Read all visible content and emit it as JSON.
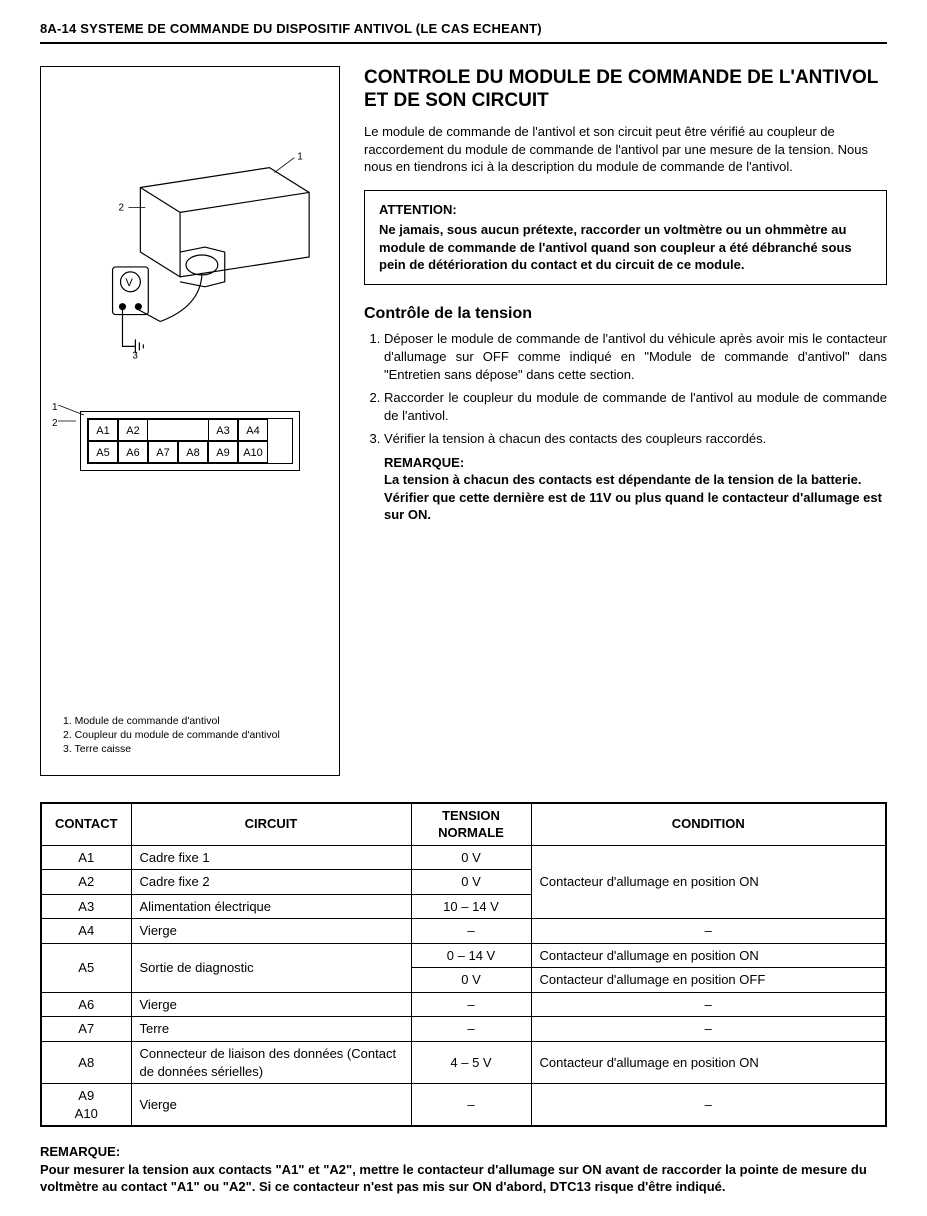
{
  "header": {
    "text": "8A-14   SYSTEME DE COMMANDE DU DISPOSITIF ANTIVOL (LE CAS ECHEANT)"
  },
  "figure": {
    "pins_row1": [
      "A1",
      "A2",
      "",
      "",
      "A3",
      "A4"
    ],
    "pins_row2": [
      "A5",
      "A6",
      "A7",
      "A8",
      "A9",
      "A10"
    ],
    "legend": [
      "1. Module de commande d'antivol",
      "2. Coupleur du module de commande d'antivol",
      "3. Terre caisse"
    ]
  },
  "title": "CONTROLE DU MODULE DE COMMANDE DE L'ANTIVOL ET DE SON CIRCUIT",
  "intro": "Le module de commande de l'antivol et son circuit peut être vérifié au coupleur de raccordement du module de commande de l'antivol par une mesure de la tension. Nous nous en tiendrons ici à la description du module de commande de l'antivol.",
  "attention": {
    "label": "ATTENTION:",
    "body": "Ne jamais, sous aucun prétexte, raccorder un voltmètre ou un ohmmètre au module de commande de l'antivol quand son coupleur a été débranché sous pein de détérioration du contact et du circuit de ce module."
  },
  "subheading": "Contrôle de la tension",
  "steps": [
    "Déposer le module de commande de l'antivol du véhicule après avoir mis le contacteur d'allumage sur OFF comme indiqué en \"Module de commande d'antivol\" dans \"Entretien sans dépose\" dans cette section.",
    "Raccorder le coupleur du module de commande de l'antivol au module de commande de l'antivol.",
    "Vérifier la tension à chacun des contacts des coupleurs raccordés."
  ],
  "step_remark": {
    "label": "REMARQUE:",
    "body": "La tension à chacun des contacts est dépendante de la tension de la batterie. Vérifier que cette dernière est de 11V ou plus quand le contacteur d'allumage est sur ON."
  },
  "table": {
    "headers": {
      "contact": "CONTACT",
      "circuit": "CIRCUIT",
      "tension": "TENSION NORMALE",
      "condition": "CONDITION"
    },
    "rows": [
      {
        "contact": "A1",
        "circuit": "Cadre fixe 1",
        "tension": "0 V",
        "condition": "Contacteur d'allumage en position ON",
        "cond_rowspan": 3
      },
      {
        "contact": "A2",
        "circuit": "Cadre fixe 2",
        "tension": "0 V"
      },
      {
        "contact": "A3",
        "circuit": "Alimentation électrique",
        "tension": "10 – 14 V"
      },
      {
        "contact": "A4",
        "circuit": "Vierge",
        "tension": "–",
        "condition": "–",
        "cond_center": true
      },
      {
        "contact": "A5",
        "contact_rowspan": 2,
        "circuit": "Sortie de diagnostic",
        "circuit_rowspan": 2,
        "tension": "0 – 14 V",
        "condition": "Contacteur d'allumage en position ON"
      },
      {
        "tension": "0 V",
        "condition": "Contacteur d'allumage en position OFF"
      },
      {
        "contact": "A6",
        "circuit": "Vierge",
        "tension": "–",
        "condition": "–",
        "cond_center": true
      },
      {
        "contact": "A7",
        "circuit": "Terre",
        "tension": "–",
        "condition": "–",
        "cond_center": true
      },
      {
        "contact": "A8",
        "circuit": "Connecteur de liaison des données (Contact de données sérielles)",
        "tension": "4 – 5 V",
        "condition": "Contacteur d'allumage en position ON"
      },
      {
        "contact": "A9\nA10",
        "circuit": "Vierge",
        "tension": "–",
        "condition": "–",
        "cond_center": true
      }
    ]
  },
  "footer_remark": {
    "label": "REMARQUE:",
    "body": "Pour mesurer la tension aux contacts \"A1\" et \"A2\", mettre le contacteur d'allumage sur ON avant de raccorder la pointe de mesure du voltmètre au contact \"A1\" ou \"A2\". Si ce contacteur n'est pas mis sur ON d'abord, DTC13 risque d'être indiqué."
  }
}
